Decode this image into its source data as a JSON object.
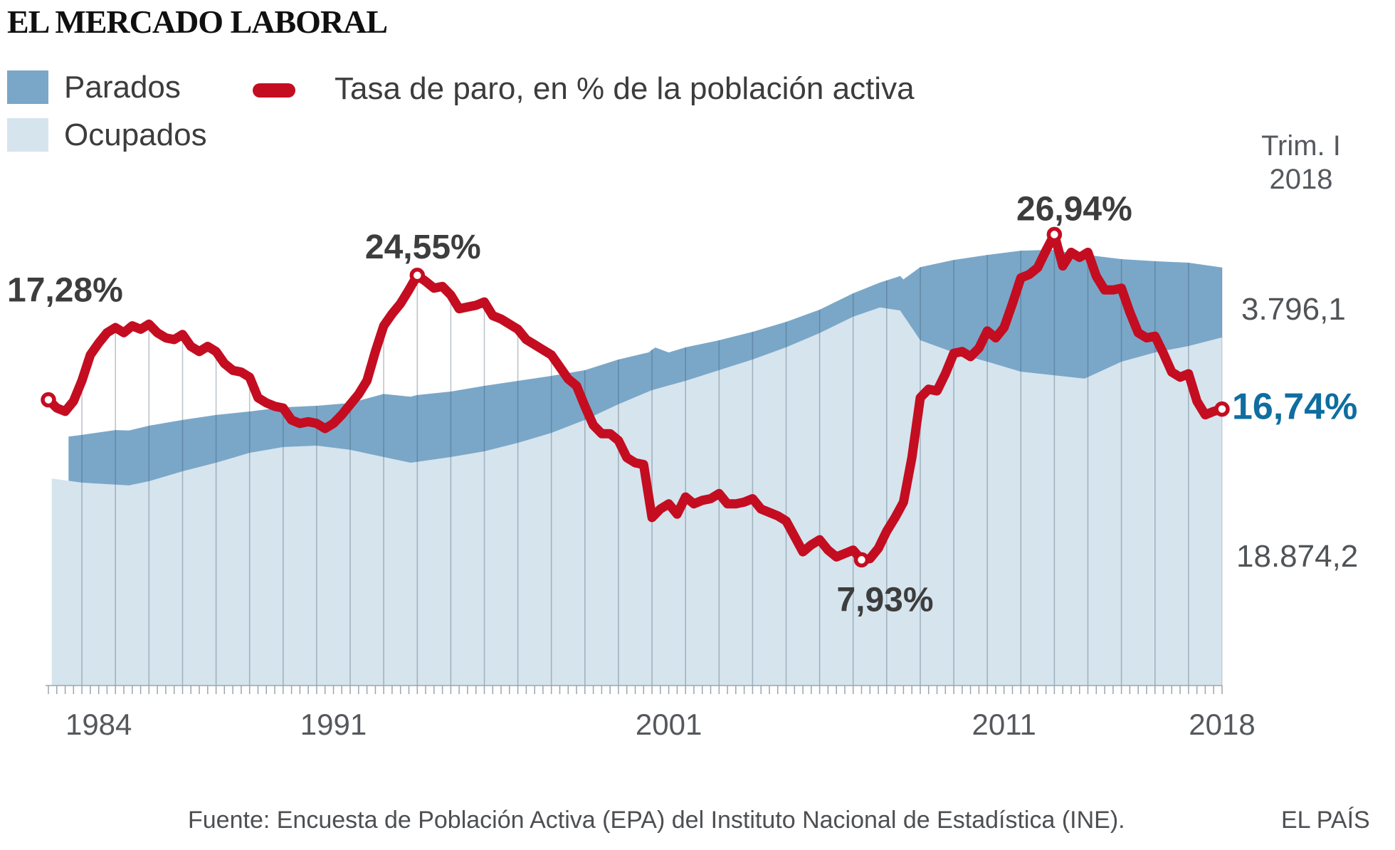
{
  "header": {
    "title": "EL MERCADO LABORAL"
  },
  "legend": {
    "parados": {
      "label": "Parados",
      "color": "#7aa7c8"
    },
    "ocupados": {
      "label": "Ocupados",
      "color": "#d6e4ee"
    },
    "tasa": {
      "label": "Tasa de paro, en % de la población activa",
      "color": "#c40d21"
    }
  },
  "right_panel": {
    "period_line1": "Trim. I",
    "period_line2": "2018",
    "parados_value": "3.796,1",
    "ocupados_value": "18.874,2"
  },
  "footer": {
    "source": "Fuente: Encuesta de Población Activa (EPA) del Instituto Nacional de Estadística (INE).",
    "credit": "EL PAÍS"
  },
  "chart_data": {
    "type": "area",
    "title": "El mercado laboral",
    "x_range": [
      1983,
      2018.25
    ],
    "x_ticks": [
      {
        "label": "1984",
        "year": 1984
      },
      {
        "label": "1991",
        "year": 1991
      },
      {
        "label": "2001",
        "year": 2001
      },
      {
        "label": "2011",
        "year": 2011
      },
      {
        "label": "2018",
        "year": 2018
      }
    ],
    "colors": {
      "parados_area": "#7aa7c8",
      "ocupados_area": "#d6e4ee",
      "tasa_line": "#c40d21",
      "annotation_dark": "#3d3d3d",
      "annotation_blue": "#0f6da0",
      "gridline": "rgba(55,80,100,0.33)",
      "axis": "#9aa6ae",
      "axis_text": "#55585c"
    },
    "annotations": [
      {
        "label": "17,28%",
        "year": 1983.0,
        "value": 17.28
      },
      {
        "label": "24,55%",
        "year": 1994.0,
        "value": 24.55
      },
      {
        "label": "26,94%",
        "year": 2013.0,
        "value": 26.94
      },
      {
        "label": "7,93%",
        "year": 2007.25,
        "value": 7.93
      },
      {
        "label": "16,74%",
        "year": 2018.0,
        "value": 16.74,
        "highlight": true
      }
    ],
    "series": [
      {
        "name": "Ocupados",
        "kind": "area",
        "unit": "miles de personas",
        "points": [
          [
            1983.1,
            11230
          ],
          [
            1984,
            11000
          ],
          [
            1985.4,
            10850
          ],
          [
            1986,
            11080
          ],
          [
            1987,
            11620
          ],
          [
            1988,
            12080
          ],
          [
            1989,
            12620
          ],
          [
            1990,
            12930
          ],
          [
            1991,
            13010
          ],
          [
            1992,
            12780
          ],
          [
            1993.8,
            12080
          ],
          [
            1995,
            12390
          ],
          [
            1996,
            12700
          ],
          [
            1997,
            13160
          ],
          [
            1998,
            13700
          ],
          [
            1999,
            14400
          ],
          [
            2000,
            15250
          ],
          [
            2001,
            16020
          ],
          [
            2002,
            16520
          ],
          [
            2003,
            17100
          ],
          [
            2004,
            17680
          ],
          [
            2005,
            18340
          ],
          [
            2006,
            19110
          ],
          [
            2007,
            20000
          ],
          [
            2007.8,
            20500
          ],
          [
            2008.4,
            20340
          ],
          [
            2009,
            18720
          ],
          [
            2010,
            18060
          ],
          [
            2011,
            17560
          ],
          [
            2012,
            17020
          ],
          [
            2013.9,
            16640
          ],
          [
            2015,
            17560
          ],
          [
            2016,
            18060
          ],
          [
            2017,
            18410
          ],
          [
            2018,
            18874.2
          ]
        ]
      },
      {
        "name": "Parados",
        "kind": "area",
        "unit": "miles de personas",
        "stacked_on": "Ocupados",
        "points": [
          [
            1983.6,
            2400
          ],
          [
            1984,
            2590
          ],
          [
            1985,
            2960
          ],
          [
            1986,
            3010
          ],
          [
            1987,
            2780
          ],
          [
            1988,
            2590
          ],
          [
            1989,
            2240
          ],
          [
            1990,
            2160
          ],
          [
            1991,
            2160
          ],
          [
            1992,
            2540
          ],
          [
            1993,
            3420
          ],
          [
            1994,
            3620
          ],
          [
            1995,
            3550
          ],
          [
            1996,
            3550
          ],
          [
            1997,
            3360
          ],
          [
            1998,
            3090
          ],
          [
            1999,
            2700
          ],
          [
            2000,
            2430
          ],
          [
            2000.9,
            2120
          ],
          [
            2001.1,
            2260
          ],
          [
            2001.5,
            1790
          ],
          [
            2002,
            1820
          ],
          [
            2003,
            1620
          ],
          [
            2004,
            1500
          ],
          [
            2005,
            1380
          ],
          [
            2006,
            1270
          ],
          [
            2007,
            1270
          ],
          [
            2007.8,
            1350
          ],
          [
            2008.5,
            1950
          ],
          [
            2009,
            3970
          ],
          [
            2010,
            5020
          ],
          [
            2011,
            5790
          ],
          [
            2012,
            6560
          ],
          [
            2013,
            6810
          ],
          [
            2014,
            6620
          ],
          [
            2015,
            5560
          ],
          [
            2016,
            4950
          ],
          [
            2017,
            4520
          ],
          [
            2018,
            3796.1
          ]
        ]
      },
      {
        "name": "Tasa de paro",
        "kind": "line",
        "unit": "% de la población activa",
        "start": 1983.0,
        "step": 0.25,
        "values": [
          17.28,
          16.8,
          16.6,
          17.2,
          18.4,
          19.9,
          20.6,
          21.2,
          21.5,
          21.2,
          21.6,
          21.4,
          21.7,
          21.2,
          20.9,
          20.8,
          21.1,
          20.4,
          20.1,
          20.4,
          20.1,
          19.4,
          19.0,
          18.9,
          18.6,
          17.4,
          17.1,
          16.9,
          16.8,
          16.1,
          15.9,
          16.0,
          15.9,
          15.6,
          15.9,
          16.4,
          17.0,
          17.6,
          18.4,
          20.1,
          21.6,
          22.3,
          22.9,
          23.7,
          24.55,
          24.2,
          23.8,
          23.9,
          23.4,
          22.6,
          22.7,
          22.8,
          23.0,
          22.2,
          22.0,
          21.7,
          21.4,
          20.8,
          20.5,
          20.2,
          19.9,
          19.2,
          18.5,
          18.1,
          16.9,
          15.8,
          15.3,
          15.3,
          14.9,
          13.9,
          13.6,
          13.5,
          10.4,
          10.9,
          11.2,
          10.6,
          11.6,
          11.2,
          11.4,
          11.5,
          11.8,
          11.2,
          11.2,
          11.3,
          11.5,
          10.9,
          10.7,
          10.5,
          10.2,
          9.3,
          8.4,
          8.8,
          9.1,
          8.5,
          8.1,
          8.3,
          8.5,
          7.93,
          8.0,
          8.6,
          9.6,
          10.4,
          11.3,
          13.9,
          17.4,
          17.9,
          17.8,
          18.8,
          20.0,
          20.1,
          19.8,
          20.3,
          21.3,
          20.9,
          21.5,
          22.9,
          24.4,
          24.6,
          25.0,
          26.0,
          26.94,
          25.1,
          25.9,
          25.6,
          25.9,
          24.5,
          23.7,
          23.7,
          23.8,
          22.4,
          21.2,
          20.9,
          21.0,
          20.0,
          18.9,
          18.6,
          18.8,
          17.2,
          16.4,
          16.6,
          16.74
        ]
      }
    ]
  }
}
